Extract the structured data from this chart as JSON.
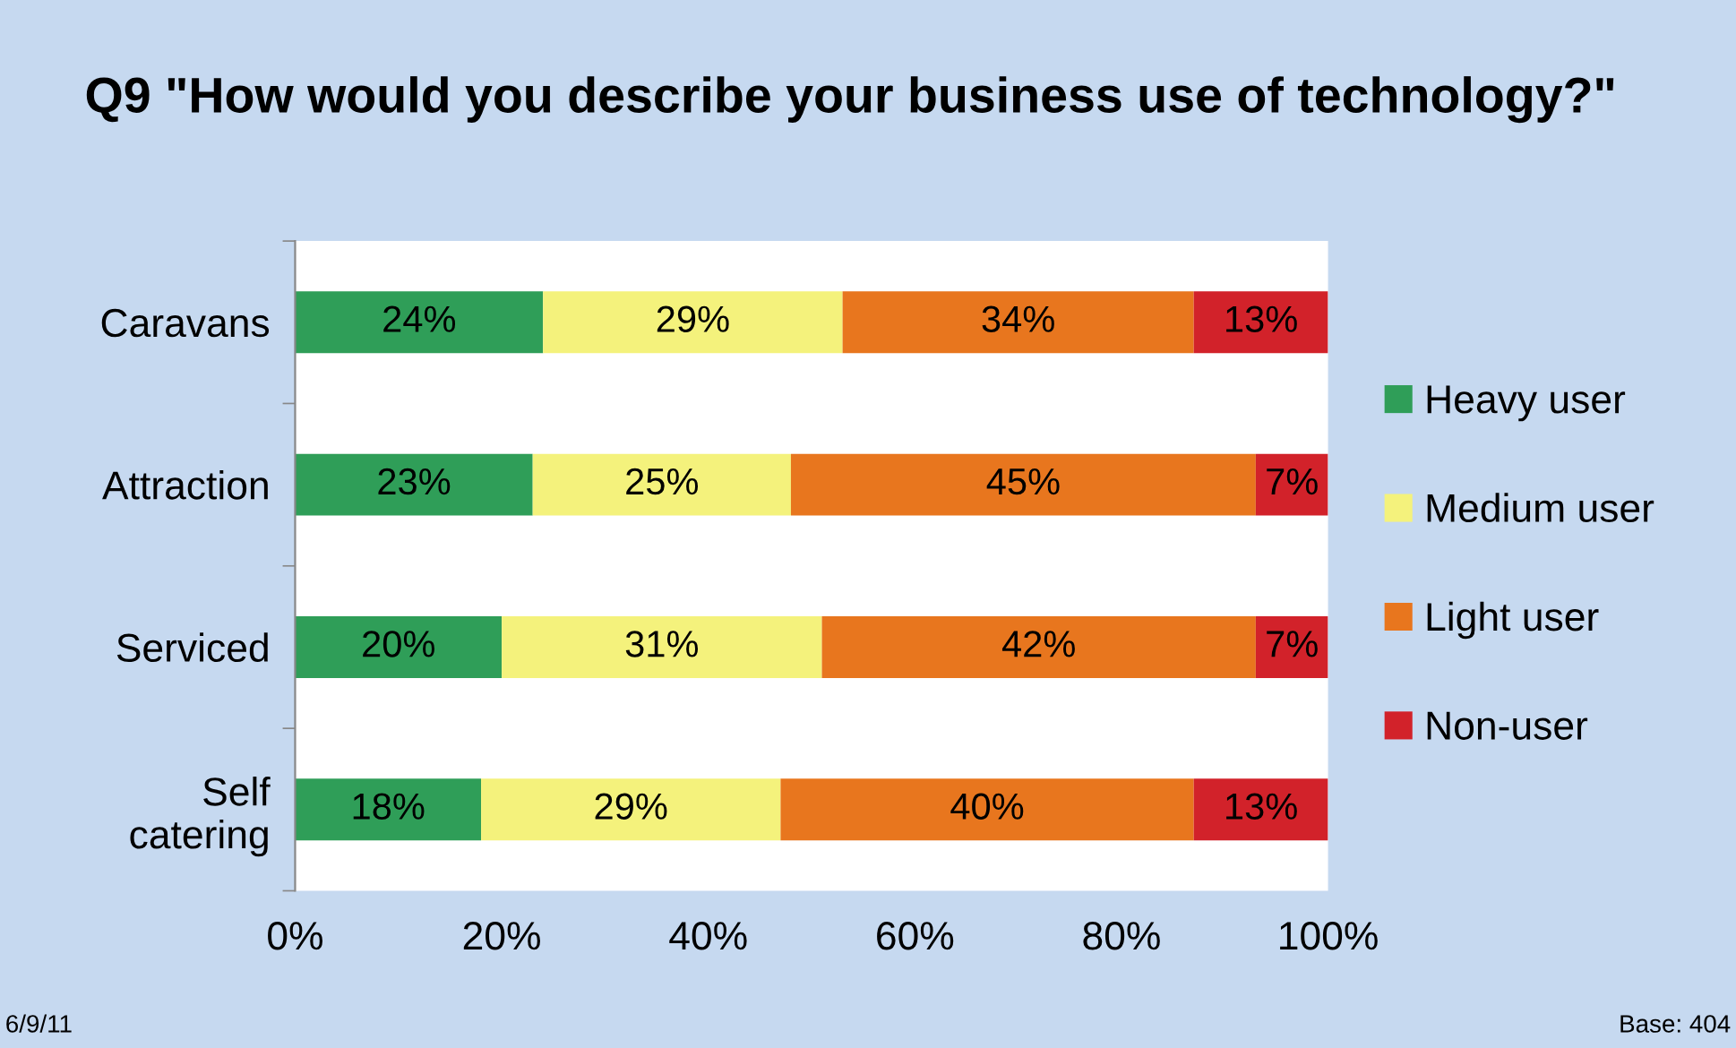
{
  "chart_data": {
    "type": "bar",
    "orientation": "horizontal",
    "stacked": true,
    "title": "Q9 \"How would you describe your business use of technology?\"",
    "categories": [
      "Caravans",
      "Attraction",
      "Serviced",
      "Self\ncatering"
    ],
    "series": [
      {
        "name": "Heavy user",
        "color": "#2f9e58",
        "values": [
          24,
          23,
          20,
          18
        ],
        "value_labels": [
          "24%",
          "23%",
          "20%",
          "18%"
        ]
      },
      {
        "name": "Medium user",
        "color": "#f4f27c",
        "values": [
          29,
          25,
          31,
          29
        ],
        "value_labels": [
          "29%",
          "25%",
          "31%",
          "29%"
        ]
      },
      {
        "name": "Light user",
        "color": "#e8761e",
        "values": [
          34,
          45,
          42,
          40
        ],
        "value_labels": [
          "34%",
          "45%",
          "42%",
          "40%"
        ]
      },
      {
        "name": "Non-user",
        "color": "#d2222a",
        "values": [
          13,
          7,
          7,
          13
        ],
        "value_labels": [
          "13%",
          "7%",
          "7%",
          "13%"
        ]
      }
    ],
    "xlim": [
      0,
      100
    ],
    "xticks": [
      {
        "value": 0,
        "label": "0%"
      },
      {
        "value": 20,
        "label": "20%"
      },
      {
        "value": 40,
        "label": "40%"
      },
      {
        "value": 60,
        "label": "60%"
      },
      {
        "value": 80,
        "label": "80%"
      },
      {
        "value": 100,
        "label": "100%"
      }
    ],
    "grid": false,
    "legend": "right",
    "annotations": [
      "6/9/11",
      "Base: 404"
    ]
  }
}
